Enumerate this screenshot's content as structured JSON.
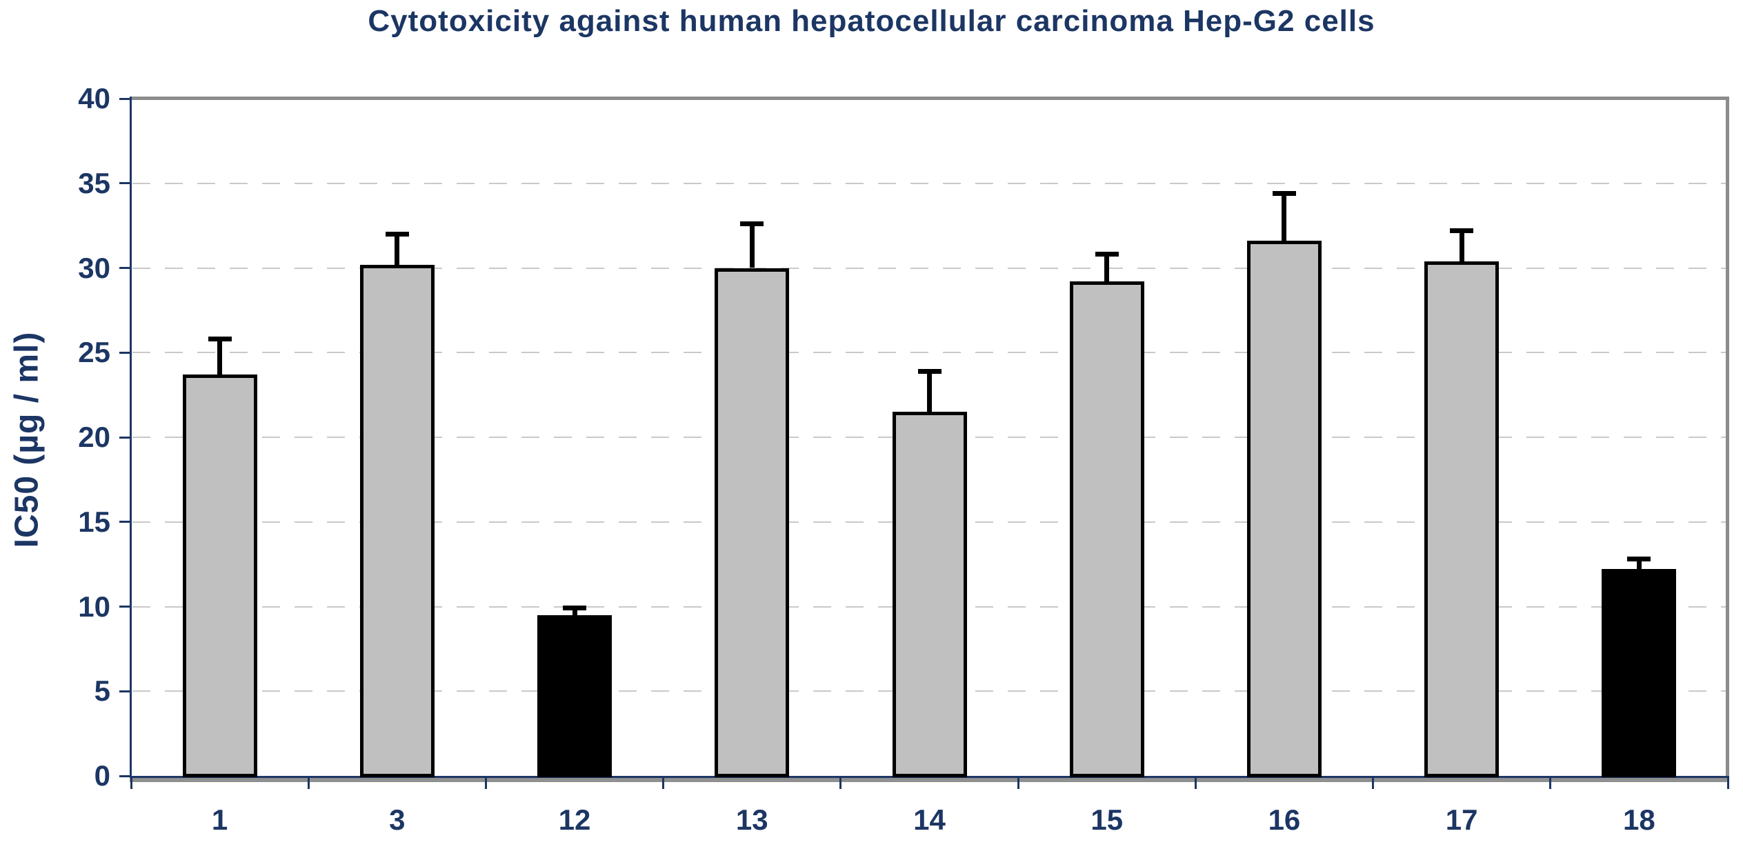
{
  "chart": {
    "title": "Cytotoxicity against human hepatocellular carcinoma Hep-G2 cells",
    "y_axis_title": "IC50 (µg / ml)"
  },
  "chart_data": {
    "type": "bar",
    "title": "Cytotoxicity against human hepatocellular carcinoma Hep-G2 cells",
    "xlabel": "",
    "ylabel": "IC50 (µg / ml)",
    "categories": [
      "1",
      "3",
      "12",
      "13",
      "14",
      "15",
      "16",
      "17",
      "18"
    ],
    "values": [
      23.7,
      30.2,
      9.5,
      30.0,
      21.5,
      29.2,
      31.6,
      30.4,
      12.2
    ],
    "error_plus": [
      2.1,
      1.8,
      0.4,
      2.6,
      2.4,
      1.6,
      2.8,
      1.8,
      0.6
    ],
    "error_bar_tops": [
      25.8,
      32.0,
      9.9,
      32.6,
      23.9,
      30.8,
      34.4,
      32.2,
      12.8
    ],
    "ylim": [
      0,
      40
    ],
    "ytick_interval": 5,
    "ytick_labels": [
      "0",
      "5",
      "10",
      "15",
      "20",
      "25",
      "30",
      "35",
      "40"
    ],
    "grid": "horizontal dashed gridlines every 5 units",
    "legend": "none",
    "highlighted_categories": [
      "12",
      "18"
    ],
    "style": {
      "bar_fill_default": "#C0C0C0",
      "bar_fill_highlight": "#000000",
      "bar_border": "#000000",
      "error_bar_color": "#000000",
      "text_color": "#1C3664",
      "gridline_color": "#C9C9C9",
      "plot_border_color": "#8C8C8C",
      "axis_gray": "#909090",
      "background": "#FFFFFF"
    }
  }
}
